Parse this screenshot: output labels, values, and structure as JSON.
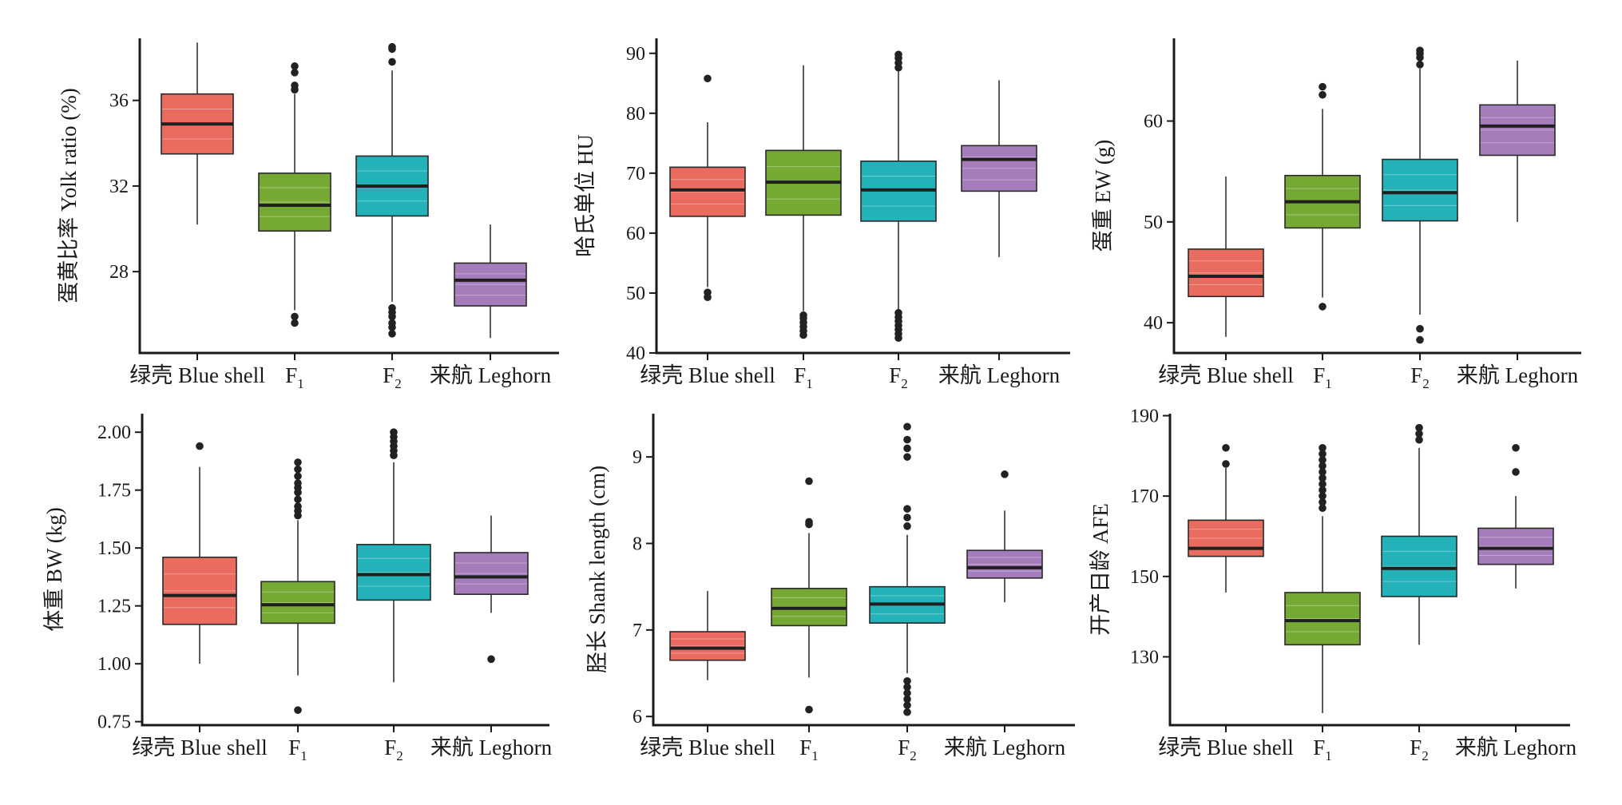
{
  "colors": {
    "blue_shell": "#EA6B5F",
    "F1": "#76A834",
    "F2": "#22B2B8",
    "leghorn": "#A57DBA",
    "axis": "#1a1a1a",
    "median": "#1f1f1f",
    "outlier": "#222222"
  },
  "chart_data": [
    {
      "type": "box",
      "ylabel": "蛋黄比率 Yolk ratio (%)",
      "yticks": [
        28,
        32,
        36
      ],
      "ylim": [
        24.2,
        38.9
      ],
      "categories": [
        {
          "name": "绿壳 Blue shell",
          "sub": ""
        },
        {
          "name": "F",
          "sub": "1"
        },
        {
          "name": "F",
          "sub": "2"
        },
        {
          "name": "来航 Leghorn",
          "sub": ""
        }
      ],
      "boxes": [
        {
          "min": 30.2,
          "q1": 33.5,
          "median": 34.9,
          "q3": 36.3,
          "max": 38.7,
          "outliers": []
        },
        {
          "min": 26.2,
          "q1": 29.9,
          "median": 31.1,
          "q3": 32.6,
          "max": 36.3,
          "outliers": [
            25.6,
            25.9,
            36.5,
            36.7,
            37.3,
            37.6
          ]
        },
        {
          "min": 26.6,
          "q1": 30.6,
          "median": 32.0,
          "q3": 33.4,
          "max": 37.4,
          "outliers": [
            25.1,
            25.4,
            25.6,
            25.9,
            26.1,
            26.3,
            37.8,
            38.4,
            38.5
          ]
        },
        {
          "min": 24.9,
          "q1": 26.4,
          "median": 27.6,
          "q3": 28.4,
          "max": 30.2,
          "outliers": []
        }
      ]
    },
    {
      "type": "box",
      "ylabel": "哈氏单位 HU",
      "yticks": [
        40,
        50,
        60,
        70,
        80,
        90
      ],
      "ylim": [
        40,
        92.5
      ],
      "categories": [
        {
          "name": "绿壳 Blue shell",
          "sub": ""
        },
        {
          "name": "F",
          "sub": "1"
        },
        {
          "name": "F",
          "sub": "2"
        },
        {
          "name": "来航 Leghorn",
          "sub": ""
        }
      ],
      "boxes": [
        {
          "min": 51,
          "q1": 62.8,
          "median": 67.2,
          "q3": 71,
          "max": 78.5,
          "outliers": [
            49.3,
            50.1,
            85.8
          ]
        },
        {
          "min": 47,
          "q1": 63,
          "median": 68.5,
          "q3": 73.8,
          "max": 88,
          "outliers": [
            43,
            43.7,
            44.4,
            45.1,
            45.8,
            46.3
          ]
        },
        {
          "min": 47,
          "q1": 62,
          "median": 67.2,
          "q3": 72,
          "max": 87,
          "outliers": [
            42.5,
            43.2,
            43.9,
            44.6,
            45.3,
            46,
            46.7,
            87.6,
            88.4,
            89.2,
            89.8
          ]
        },
        {
          "min": 56,
          "q1": 67,
          "median": 72.3,
          "q3": 74.6,
          "max": 85.5,
          "outliers": []
        }
      ]
    },
    {
      "type": "box",
      "ylabel": "蛋重 EW (g)",
      "yticks": [
        40,
        50,
        60
      ],
      "ylim": [
        37,
        68.2
      ],
      "categories": [
        {
          "name": "绿壳 Blue shell",
          "sub": ""
        },
        {
          "name": "F",
          "sub": "1"
        },
        {
          "name": "F",
          "sub": "2"
        },
        {
          "name": "来航 Leghorn",
          "sub": ""
        }
      ],
      "boxes": [
        {
          "min": 38.6,
          "q1": 42.6,
          "median": 44.6,
          "q3": 47.3,
          "max": 54.5,
          "outliers": []
        },
        {
          "min": 42.5,
          "q1": 49.4,
          "median": 52.0,
          "q3": 54.6,
          "max": 61.2,
          "outliers": [
            41.6,
            62.6,
            63.4
          ]
        },
        {
          "min": 40.8,
          "q1": 50.1,
          "median": 52.9,
          "q3": 56.2,
          "max": 65.2,
          "outliers": [
            38.3,
            39.4,
            65.6,
            66.3,
            66.7,
            67.0
          ]
        },
        {
          "min": 50.0,
          "q1": 56.6,
          "median": 59.5,
          "q3": 61.6,
          "max": 66.0,
          "outliers": []
        }
      ]
    },
    {
      "type": "box",
      "ylabel": "体重 BW (kg)",
      "yticks": [
        0.75,
        1.0,
        1.25,
        1.5,
        1.75,
        2.0
      ],
      "yticklabels": [
        "0.75",
        "1.00",
        "1.25",
        "1.50",
        "1.75",
        "2.00"
      ],
      "ylim": [
        0.735,
        2.08
      ],
      "categories": [
        {
          "name": "绿壳 Blue shell",
          "sub": ""
        },
        {
          "name": "F",
          "sub": "1"
        },
        {
          "name": "F",
          "sub": "2"
        },
        {
          "name": "来航 Leghorn",
          "sub": ""
        }
      ],
      "boxes": [
        {
          "min": 1.0,
          "q1": 1.17,
          "median": 1.295,
          "q3": 1.46,
          "max": 1.85,
          "outliers": [
            1.94
          ]
        },
        {
          "min": 0.95,
          "q1": 1.175,
          "median": 1.255,
          "q3": 1.355,
          "max": 1.62,
          "outliers": [
            0.8,
            1.64,
            1.66,
            1.68,
            1.71,
            1.74,
            1.76,
            1.78,
            1.81,
            1.84,
            1.87
          ]
        },
        {
          "min": 0.92,
          "q1": 1.275,
          "median": 1.385,
          "q3": 1.515,
          "max": 1.87,
          "outliers": [
            1.9,
            1.92,
            1.94,
            1.96,
            1.98,
            2.0
          ]
        },
        {
          "min": 1.22,
          "q1": 1.3,
          "median": 1.375,
          "q3": 1.48,
          "max": 1.64,
          "outliers": [
            1.02
          ]
        }
      ]
    },
    {
      "type": "box",
      "ylabel": "胫长 Shank length (cm)",
      "yticks": [
        6,
        7,
        8,
        9
      ],
      "ylim": [
        5.9,
        9.5
      ],
      "categories": [
        {
          "name": "绿壳 Blue shell",
          "sub": ""
        },
        {
          "name": "F",
          "sub": "1"
        },
        {
          "name": "F",
          "sub": "2"
        },
        {
          "name": "来航 Leghorn",
          "sub": ""
        }
      ],
      "boxes": [
        {
          "min": 6.42,
          "q1": 6.65,
          "median": 6.79,
          "q3": 6.98,
          "max": 7.45,
          "outliers": []
        },
        {
          "min": 6.45,
          "q1": 7.05,
          "median": 7.25,
          "q3": 7.48,
          "max": 8.12,
          "outliers": [
            6.08,
            8.22,
            8.25,
            8.72
          ]
        },
        {
          "min": 6.5,
          "q1": 7.08,
          "median": 7.3,
          "q3": 7.5,
          "max": 8.1,
          "outliers": [
            6.05,
            6.13,
            6.2,
            6.27,
            6.34,
            6.41,
            8.2,
            8.3,
            8.4,
            9.0,
            9.1,
            9.2,
            9.35
          ]
        },
        {
          "min": 7.32,
          "q1": 7.6,
          "median": 7.72,
          "q3": 7.92,
          "max": 8.38,
          "outliers": [
            8.8
          ]
        }
      ]
    },
    {
      "type": "box",
      "ylabel": "开产日龄 AFE",
      "yticks": [
        130,
        150,
        170,
        190
      ],
      "ylim": [
        113,
        190.5
      ],
      "categories": [
        {
          "name": "绿壳 Blue shell",
          "sub": ""
        },
        {
          "name": "F",
          "sub": "1"
        },
        {
          "name": "F",
          "sub": "2"
        },
        {
          "name": "来航 Leghorn",
          "sub": ""
        }
      ],
      "boxes": [
        {
          "min": 146,
          "q1": 155,
          "median": 157,
          "q3": 164,
          "max": 177,
          "outliers": [
            178,
            182
          ]
        },
        {
          "min": 116,
          "q1": 133,
          "median": 139,
          "q3": 146,
          "max": 165,
          "outliers": [
            167,
            168.5,
            170,
            171.5,
            173,
            174.5,
            176,
            177.5,
            179,
            180.5,
            182
          ]
        },
        {
          "min": 133,
          "q1": 145,
          "median": 152,
          "q3": 160,
          "max": 182,
          "outliers": [
            184,
            185.5,
            187
          ]
        },
        {
          "min": 147,
          "q1": 153,
          "median": 157,
          "q3": 162,
          "max": 170,
          "outliers": [
            176,
            182
          ]
        }
      ]
    }
  ]
}
